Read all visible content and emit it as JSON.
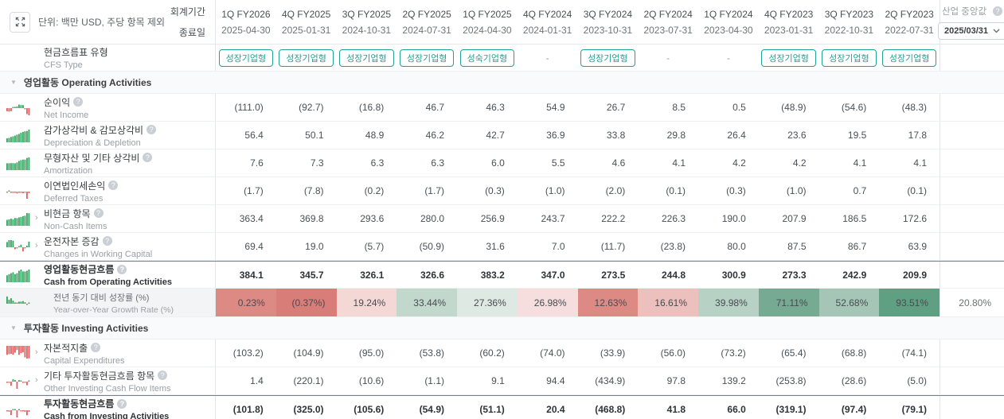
{
  "meta": {
    "unit_note": "단위: 백만 USD, 주당 항목 제외"
  },
  "header": {
    "fiscal_period_label": "회계기간",
    "end_date_label": "종료일",
    "industry_median": {
      "label": "산업 중앙값",
      "selected_date": "2025/03/31"
    }
  },
  "columns": [
    {
      "period": "1Q FY2026",
      "end_date": "2025-04-30"
    },
    {
      "period": "4Q FY2025",
      "end_date": "2025-01-31"
    },
    {
      "period": "3Q FY2025",
      "end_date": "2024-10-31"
    },
    {
      "period": "2Q FY2025",
      "end_date": "2024-07-31"
    },
    {
      "period": "1Q FY2025",
      "end_date": "2024-04-30"
    },
    {
      "period": "4Q FY2024",
      "end_date": "2024-01-31"
    },
    {
      "period": "3Q FY2024",
      "end_date": "2023-10-31"
    },
    {
      "period": "2Q FY2024",
      "end_date": "2023-07-31"
    },
    {
      "period": "1Q FY2024",
      "end_date": "2023-04-30"
    },
    {
      "period": "4Q FY2023",
      "end_date": "2023-01-31"
    },
    {
      "period": "3Q FY2023",
      "end_date": "2022-10-31"
    },
    {
      "period": "2Q FY2023",
      "end_date": "2022-07-31"
    }
  ],
  "cfs_type": {
    "label_ko": "현금흐름표 유형",
    "label_en": "CFS Type",
    "values": [
      "성장기업형",
      "성장기업형",
      "성장기업형",
      "성장기업형",
      "성숙기업형",
      "-",
      "성장기업형",
      "-",
      "-",
      "성장기업형",
      "성장기업형",
      "성장기업형"
    ]
  },
  "rows": [
    {
      "type": "section",
      "label_ko": "영업활동",
      "label_en": "Operating Activities"
    },
    {
      "type": "data",
      "label_ko": "순이익",
      "label_en": "Net Income",
      "info": true,
      "expandable": false,
      "bold": false,
      "values": [
        "(111.0)",
        "(92.7)",
        "(16.8)",
        "46.7",
        "46.3",
        "54.9",
        "26.7",
        "8.5",
        "0.5",
        "(48.9)",
        "(54.6)",
        "(48.3)"
      ]
    },
    {
      "type": "data",
      "label_ko": "감가상각비 & 감모상각비",
      "label_en": "Depreciation & Depletion",
      "info": true,
      "expandable": false,
      "bold": false,
      "values": [
        "56.4",
        "50.1",
        "48.9",
        "46.2",
        "42.7",
        "36.9",
        "33.8",
        "29.8",
        "26.4",
        "23.6",
        "19.5",
        "17.8"
      ]
    },
    {
      "type": "data",
      "label_ko": "무형자산 및 기타 상각비",
      "label_en": "Amortization",
      "info": true,
      "expandable": false,
      "bold": false,
      "values": [
        "7.6",
        "7.3",
        "6.3",
        "6.3",
        "6.0",
        "5.5",
        "4.6",
        "4.1",
        "4.2",
        "4.2",
        "4.1",
        "4.1"
      ]
    },
    {
      "type": "data",
      "label_ko": "이연법인세손익",
      "label_en": "Deferred Taxes",
      "info": true,
      "expandable": false,
      "bold": false,
      "values": [
        "(1.7)",
        "(7.8)",
        "(0.2)",
        "(1.7)",
        "(0.3)",
        "(1.0)",
        "(2.0)",
        "(0.1)",
        "(0.3)",
        "(1.0)",
        "0.7",
        "(0.1)"
      ]
    },
    {
      "type": "data",
      "label_ko": "비현금 항목",
      "label_en": "Non-Cash Items",
      "info": true,
      "expandable": true,
      "bold": false,
      "values": [
        "363.4",
        "369.8",
        "293.6",
        "280.0",
        "256.9",
        "243.7",
        "222.2",
        "226.3",
        "190.0",
        "207.9",
        "186.5",
        "172.6"
      ]
    },
    {
      "type": "data",
      "label_ko": "운전자본 증감",
      "label_en": "Changes in Working Capital",
      "info": true,
      "expandable": true,
      "bold": false,
      "values": [
        "69.4",
        "19.0",
        "(5.7)",
        "(50.9)",
        "31.6",
        "7.0",
        "(11.7)",
        "(23.8)",
        "80.0",
        "87.5",
        "86.7",
        "63.9"
      ]
    },
    {
      "type": "data",
      "label_ko": "영업활동현금흐름",
      "label_en": "Cash from Operating Activities",
      "info": true,
      "expandable": false,
      "bold": true,
      "values": [
        "384.1",
        "345.7",
        "326.1",
        "326.6",
        "383.2",
        "347.0",
        "273.5",
        "244.8",
        "300.9",
        "273.3",
        "242.9",
        "209.9"
      ]
    },
    {
      "type": "heatmap",
      "label_ko": "전년 동기 대비 성장률 (%)",
      "label_en": "Year-over-Year Growth Rate (%)",
      "values": [
        "0.23%",
        "(0.37%)",
        "19.24%",
        "33.44%",
        "27.36%",
        "26.98%",
        "12.63%",
        "16.61%",
        "39.98%",
        "71.11%",
        "52.68%",
        "93.51%"
      ],
      "cell_colors": [
        "#dd8a85",
        "#d87d78",
        "#f3d8d6",
        "#c2d8cc",
        "#dfe9e3",
        "#f5dedd",
        "#dd8a85",
        "#ecc0bd",
        "#b7d2c4",
        "#77aa92",
        "#a5c6b6",
        "#5f9f82"
      ],
      "median_value": "20.80%"
    },
    {
      "type": "section",
      "label_ko": "투자활동",
      "label_en": "Investing Activities"
    },
    {
      "type": "data",
      "label_ko": "자본적지출",
      "label_en": "Capital Expenditures",
      "info": true,
      "expandable": true,
      "bold": false,
      "values": [
        "(103.2)",
        "(104.9)",
        "(95.0)",
        "(53.8)",
        "(60.2)",
        "(74.0)",
        "(33.9)",
        "(56.0)",
        "(73.2)",
        "(65.4)",
        "(68.8)",
        "(74.1)"
      ]
    },
    {
      "type": "data",
      "label_ko": "기타 투자활동현금흐름 항목",
      "label_en": "Other Investing Cash Flow Items",
      "info": true,
      "expandable": true,
      "bold": false,
      "values": [
        "1.4",
        "(220.1)",
        "(10.6)",
        "(1.1)",
        "9.1",
        "94.4",
        "(434.9)",
        "97.8",
        "139.2",
        "(253.8)",
        "(28.6)",
        "(5.0)"
      ]
    },
    {
      "type": "data",
      "label_ko": "투자활동현금흐름",
      "label_en": "Cash from Investing Activities",
      "info": true,
      "expandable": false,
      "bold": true,
      "values": [
        "(101.8)",
        "(325.0)",
        "(105.6)",
        "(54.9)",
        "(51.1)",
        "20.4",
        "(468.8)",
        "41.8",
        "66.0",
        "(319.1)",
        "(97.4)",
        "(79.1)"
      ]
    }
  ],
  "colors": {
    "badge_accent": "#23a191",
    "spark_positive": "#2fa35c",
    "spark_negative": "#e25c5c"
  }
}
